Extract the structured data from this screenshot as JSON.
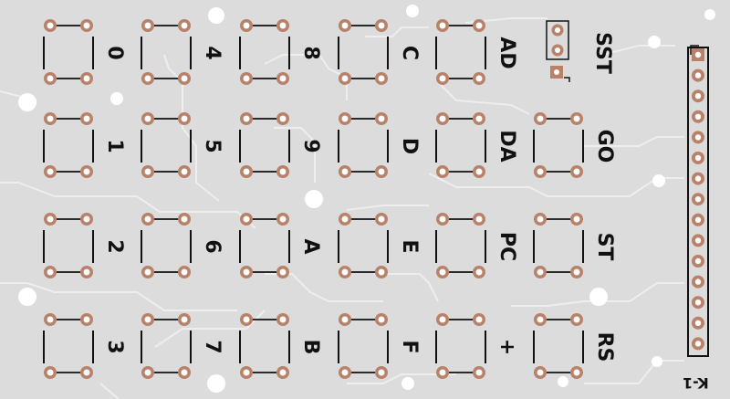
{
  "board": {
    "colors": {
      "substrate": "#dcdcdc",
      "trace": "#eeeeee",
      "pad": "#b8826a",
      "silk": "#111111",
      "hole": "#ffffff"
    },
    "keypad": {
      "rows": [
        [
          "0",
          "4",
          "8",
          "C",
          "AD",
          "SST"
        ],
        [
          "1",
          "5",
          "9",
          "D",
          "DA",
          "GO"
        ],
        [
          "2",
          "6",
          "A",
          "E",
          "PC",
          "ST"
        ],
        [
          "3",
          "7",
          "B",
          "F",
          "+",
          "RS"
        ]
      ]
    },
    "reference": "K-1"
  }
}
